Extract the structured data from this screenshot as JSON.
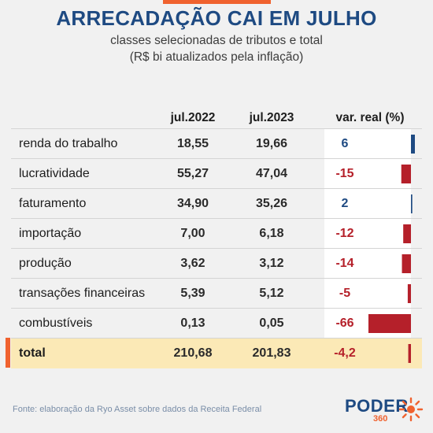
{
  "header": {
    "title": "ARRECADAÇÃO CAI EM JULHO",
    "subtitle_line1": "classes selecionadas de tributos e total",
    "subtitle_line2": "(R$ bi atualizados pela inflação)"
  },
  "colors": {
    "positive": "#1e4a82",
    "negative": "#b5202a",
    "accent": "#f0622f",
    "total_bg": "#fbe9b6"
  },
  "chart_data": {
    "type": "table",
    "columns": [
      "jul.2022",
      "jul.2023",
      "var. real (%)"
    ],
    "rows": [
      {
        "label": "renda do trabalho",
        "jul2022": "18,55",
        "jul2023": "19,66",
        "var_text": "6",
        "var": 6
      },
      {
        "label": "lucratividade",
        "jul2022": "55,27",
        "jul2023": "47,04",
        "var_text": "-15",
        "var": -15
      },
      {
        "label": "faturamento",
        "jul2022": "34,90",
        "jul2023": "35,26",
        "var_text": "2",
        "var": 2
      },
      {
        "label": "importação",
        "jul2022": "7,00",
        "jul2023": "6,18",
        "var_text": "-12",
        "var": -12
      },
      {
        "label": "produção",
        "jul2022": "3,62",
        "jul2023": "3,12",
        "var_text": "-14",
        "var": -14
      },
      {
        "label": "transações financeiras",
        "jul2022": "5,39",
        "jul2023": "5,12",
        "var_text": "-5",
        "var": -5
      },
      {
        "label": "combustíveis",
        "jul2022": "0,13",
        "jul2023": "0,05",
        "var_text": "-66",
        "var": -66
      }
    ],
    "total": {
      "label": "total",
      "jul2022": "210,68",
      "jul2023": "201,83",
      "var_text": "-4,2",
      "var": -4.2
    },
    "var_range": [
      -66,
      6
    ]
  },
  "footer": {
    "source": "Fonte: elaboração da Ryo Asset sobre dados da Receita Federal",
    "logo_word": "PODER",
    "logo_number": "360"
  }
}
